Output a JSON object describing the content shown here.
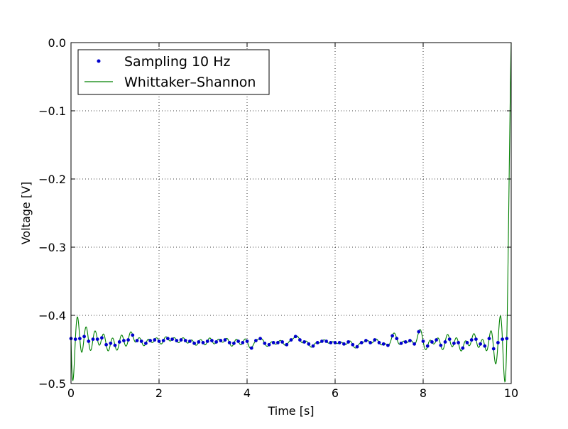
{
  "chart_data": {
    "type": "line",
    "xlabel": "Time [s]",
    "ylabel": "Voltage [V]",
    "xlim": [
      0,
      10
    ],
    "ylim": [
      -0.5,
      0.0
    ],
    "xticks": [
      0,
      2,
      4,
      6,
      8,
      10
    ],
    "xtick_labels": [
      "0",
      "2",
      "4",
      "6",
      "8",
      "10"
    ],
    "yticks": [
      0.0,
      -0.1,
      -0.2,
      -0.3,
      -0.4,
      -0.5
    ],
    "ytick_labels": [
      "0.0",
      "−0.1",
      "−0.2",
      "−0.3",
      "−0.4",
      "−0.5"
    ],
    "grid": true,
    "legend_position": "top-left",
    "series": [
      {
        "name": "Sampling 10 Hz",
        "style": "points",
        "color": "#0000cc",
        "x": [
          0.0,
          0.1,
          0.2,
          0.3,
          0.4,
          0.5,
          0.6,
          0.7,
          0.8,
          0.9,
          1.0,
          1.1,
          1.2,
          1.3,
          1.4,
          1.5,
          1.6,
          1.7,
          1.8,
          1.9,
          2.0,
          2.1,
          2.2,
          2.3,
          2.4,
          2.5,
          2.6,
          2.7,
          2.8,
          2.9,
          3.0,
          3.1,
          3.2,
          3.3,
          3.4,
          3.5,
          3.6,
          3.7,
          3.8,
          3.9,
          4.0,
          4.1,
          4.2,
          4.3,
          4.4,
          4.5,
          4.6,
          4.7,
          4.8,
          4.9,
          5.0,
          5.1,
          5.2,
          5.3,
          5.4,
          5.5,
          5.6,
          5.7,
          5.8,
          5.9,
          6.0,
          6.1,
          6.2,
          6.3,
          6.4,
          6.5,
          6.6,
          6.7,
          6.8,
          6.9,
          7.0,
          7.1,
          7.2,
          7.3,
          7.4,
          7.5,
          7.6,
          7.7,
          7.8,
          7.9,
          8.0,
          8.1,
          8.2,
          8.3,
          8.4,
          8.5,
          8.6,
          8.7,
          8.8,
          8.9,
          9.0,
          9.1,
          9.2,
          9.3,
          9.4,
          9.5,
          9.6,
          9.7,
          9.8,
          9.9
        ],
        "y": [
          -0.434,
          -0.435,
          -0.434,
          -0.431,
          -0.438,
          -0.435,
          -0.435,
          -0.433,
          -0.443,
          -0.441,
          -0.444,
          -0.439,
          -0.437,
          -0.436,
          -0.429,
          -0.437,
          -0.438,
          -0.441,
          -0.437,
          -0.436,
          -0.438,
          -0.437,
          -0.434,
          -0.435,
          -0.437,
          -0.436,
          -0.437,
          -0.438,
          -0.441,
          -0.439,
          -0.44,
          -0.438,
          -0.437,
          -0.439,
          -0.437,
          -0.436,
          -0.44,
          -0.441,
          -0.438,
          -0.44,
          -0.438,
          -0.448,
          -0.437,
          -0.434,
          -0.441,
          -0.443,
          -0.44,
          -0.44,
          -0.439,
          -0.443,
          -0.436,
          -0.431,
          -0.436,
          -0.439,
          -0.442,
          -0.445,
          -0.44,
          -0.438,
          -0.438,
          -0.44,
          -0.44,
          -0.44,
          -0.442,
          -0.439,
          -0.443,
          -0.446,
          -0.44,
          -0.437,
          -0.44,
          -0.436,
          -0.44,
          -0.442,
          -0.444,
          -0.43,
          -0.434,
          -0.441,
          -0.439,
          -0.437,
          -0.442,
          -0.424,
          -0.438,
          -0.445,
          -0.439,
          -0.436,
          -0.444,
          -0.439,
          -0.435,
          -0.441,
          -0.44,
          -0.448,
          -0.44,
          -0.436,
          -0.435,
          -0.442,
          -0.445,
          -0.434,
          -0.449,
          -0.44,
          -0.435,
          -0.434
        ]
      },
      {
        "name": "Whittaker–Shannon",
        "style": "line",
        "color": "#008000"
      }
    ]
  },
  "legend": {
    "label_1": "Sampling 10 Hz",
    "label_2": "Whittaker–Shannon"
  },
  "colors": {
    "samples": "#0000cc",
    "reconstruction": "#008000",
    "grid": "#000000"
  }
}
